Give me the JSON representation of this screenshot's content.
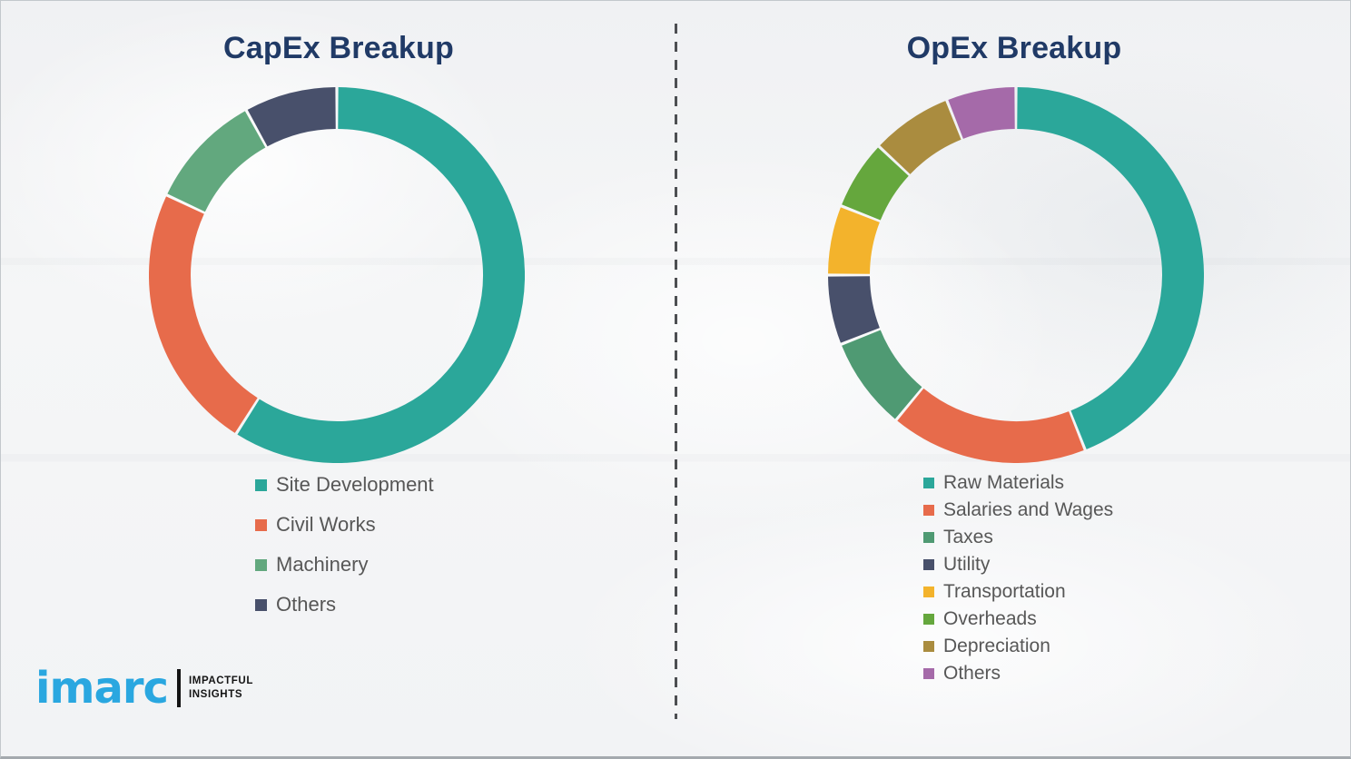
{
  "page": {
    "left_title": "CapEx Breakup",
    "right_title": "OpEx Breakup"
  },
  "chart_data": [
    {
      "type": "pie",
      "variant": "donut",
      "title": "CapEx Breakup",
      "start_angle_deg": 0,
      "direction": "clockwise",
      "unit": "percent_estimated",
      "legend_position": "below-left",
      "series": [
        {
          "name": "Site Development",
          "value": 59,
          "color": "#2ba79a"
        },
        {
          "name": "Civil Works",
          "value": 23,
          "color": "#e76b4b"
        },
        {
          "name": "Machinery",
          "value": 10,
          "color": "#62a87e"
        },
        {
          "name": "Others",
          "value": 8,
          "color": "#48506b"
        }
      ]
    },
    {
      "type": "pie",
      "variant": "donut",
      "title": "OpEx Breakup",
      "start_angle_deg": 0,
      "direction": "clockwise",
      "unit": "percent_estimated",
      "legend_position": "below-left",
      "series": [
        {
          "name": "Raw Materials",
          "value": 44,
          "color": "#2ba79a"
        },
        {
          "name": "Salaries and Wages",
          "value": 17,
          "color": "#e76b4b"
        },
        {
          "name": "Taxes",
          "value": 8,
          "color": "#4f9a73"
        },
        {
          "name": "Utility",
          "value": 6,
          "color": "#48506b"
        },
        {
          "name": "Transportation",
          "value": 6,
          "color": "#f3b32c"
        },
        {
          "name": "Overheads",
          "value": 6,
          "color": "#65a73d"
        },
        {
          "name": "Depreciation",
          "value": 7,
          "color": "#aa8c3f"
        },
        {
          "name": "Others",
          "value": 6,
          "color": "#a56aa9"
        }
      ]
    }
  ],
  "logo": {
    "word": "imarc",
    "tagline_line1": "IMPACTFUL",
    "tagline_line2": "INSIGHTS"
  },
  "colors": {
    "title_navy": "#203a66",
    "legend_text": "#575757",
    "logo_blue": "#2aa7e0",
    "divider_gray": "#4d4f52",
    "background": "#f3f4f6"
  }
}
